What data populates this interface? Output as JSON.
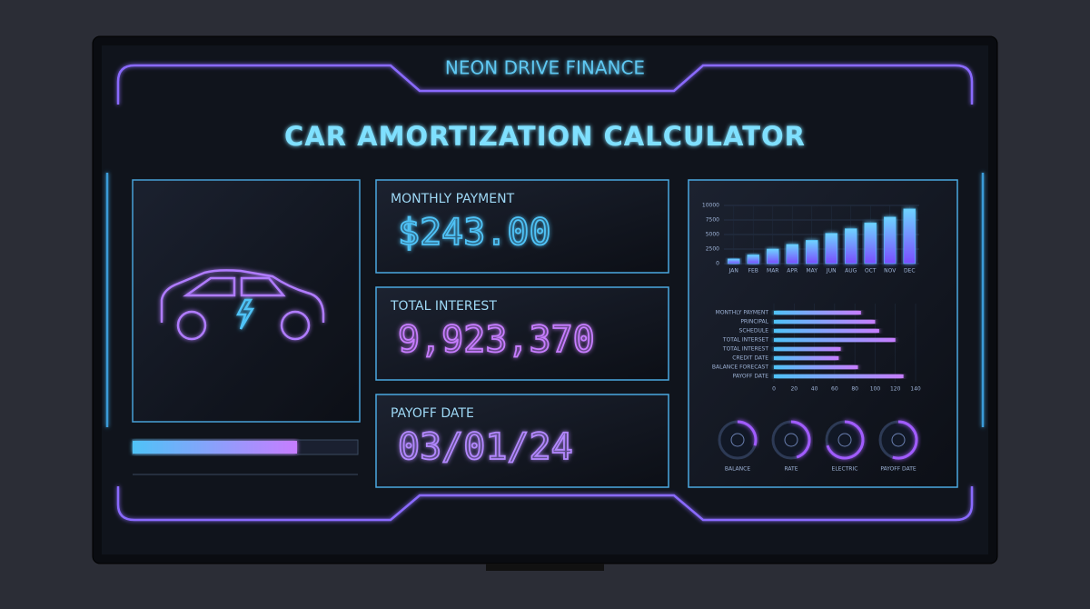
{
  "header": {
    "brand": "NEON DRIVE FINANCE",
    "title": "CAR AMORTIZATION CALCULATOR"
  },
  "cards": [
    {
      "label": "MONTHLY PAYMENT",
      "value": "$243.00",
      "color": "#4fc3f7"
    },
    {
      "label": "TOTAL INTEREST",
      "value": "9,923,370",
      "color": "#c77dff"
    },
    {
      "label": "PAYOFF DATE",
      "value": "03/01/24",
      "color": "#b388ff"
    }
  ],
  "progress": 73,
  "chart_data": [
    {
      "type": "bar",
      "categories": [
        "JAN",
        "FEB",
        "MAR",
        "APR",
        "MAY",
        "JUN",
        "AUG",
        "OCT",
        "NOV",
        "DEC"
      ],
      "values": [
        800,
        1500,
        2500,
        3300,
        4000,
        5200,
        6000,
        7000,
        8000,
        9400
      ],
      "ylim": [
        0,
        10000
      ],
      "yticks": [
        0,
        2500,
        5000,
        7500,
        10000
      ],
      "grid": true,
      "colors": [
        "#c77dff",
        "#4fc3f7"
      ]
    },
    {
      "type": "hbar",
      "categories": [
        "MONTHLY PAYMENT",
        "PRINCIPAL",
        "SCHEDULE",
        "TOTAL INTERSET",
        "TOTAL INTEREST",
        "CREDIT DATE",
        "BALANCE FORECAST",
        "PAYOFF DATE"
      ],
      "values": [
        86,
        100,
        104,
        120,
        66,
        64,
        83,
        128
      ],
      "xlim": [
        0,
        140
      ],
      "xticks": [
        0,
        20,
        40,
        60,
        80,
        100,
        120,
        140
      ],
      "colors": [
        "#4fc3f7",
        "#c77dff"
      ]
    },
    {
      "type": "gauge",
      "categories": [
        "BALANCE",
        "RATE",
        "ELECTRIC",
        "PAYOFF DATE"
      ],
      "values": [
        30,
        45,
        70,
        55
      ],
      "color": "#a15cff"
    }
  ]
}
